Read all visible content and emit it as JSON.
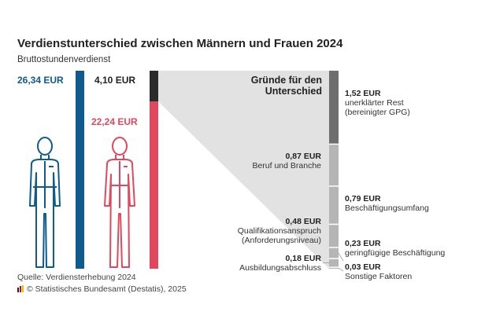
{
  "title": "Verdienstunterschied zwischen Männern und Frauen 2024",
  "subtitle": "Bruttostundenverdienst",
  "reasons_heading": "Gründe für den Unterschied",
  "source": "Quelle: Verdiensterhebung 2024",
  "copyright": "© Statistisches Bundesamt (Destatis), 2025",
  "colors": {
    "men": "#0f5a8e",
    "women": "#e0495d",
    "gap": "#2b2b2b",
    "unexplained": "#6e6e6e",
    "explained": "#b5b5b5",
    "wedge": "#e2e2e2"
  },
  "chart_data": {
    "type": "bar",
    "title": "Verdienstunterschied zwischen Männern und Frauen 2024",
    "subtitle": "Bruttostundenverdienst",
    "unit": "EUR",
    "earnings": [
      {
        "name": "Männer",
        "value": 26.34,
        "label": "26,34 EUR"
      },
      {
        "name": "Frauen",
        "value": 22.24,
        "label": "22,24 EUR"
      },
      {
        "name": "Unterschied",
        "value": 4.1,
        "label": "4,10 EUR"
      }
    ],
    "components": [
      {
        "value": 1.52,
        "value_label": "1,52 EUR",
        "label": "unerklärter Rest (bereinigter GPG)",
        "line1": "unerklärter Rest",
        "line2": "(bereinigter GPG)",
        "explained": false
      },
      {
        "value": 0.87,
        "value_label": "0,87 EUR",
        "label": "Beruf und Branche",
        "explained": true
      },
      {
        "value": 0.79,
        "value_label": "0,79 EUR",
        "label": "Beschäftigungsumfang",
        "explained": true
      },
      {
        "value": 0.48,
        "value_label": "0,48 EUR",
        "label": "Qualifikationsanspruch (Anforderungsniveau)",
        "line1": "Qualifikationsanspruch",
        "line2": "(Anforderungsniveau)",
        "explained": true
      },
      {
        "value": 0.23,
        "value_label": "0,23 EUR",
        "label": "geringfügige Beschäftigung",
        "explained": true
      },
      {
        "value": 0.18,
        "value_label": "0,18 EUR",
        "label": "Ausbildungsabschluss",
        "explained": true
      },
      {
        "value": 0.03,
        "value_label": "0,03 EUR",
        "label": "Sonstige Faktoren",
        "explained": true
      }
    ]
  }
}
